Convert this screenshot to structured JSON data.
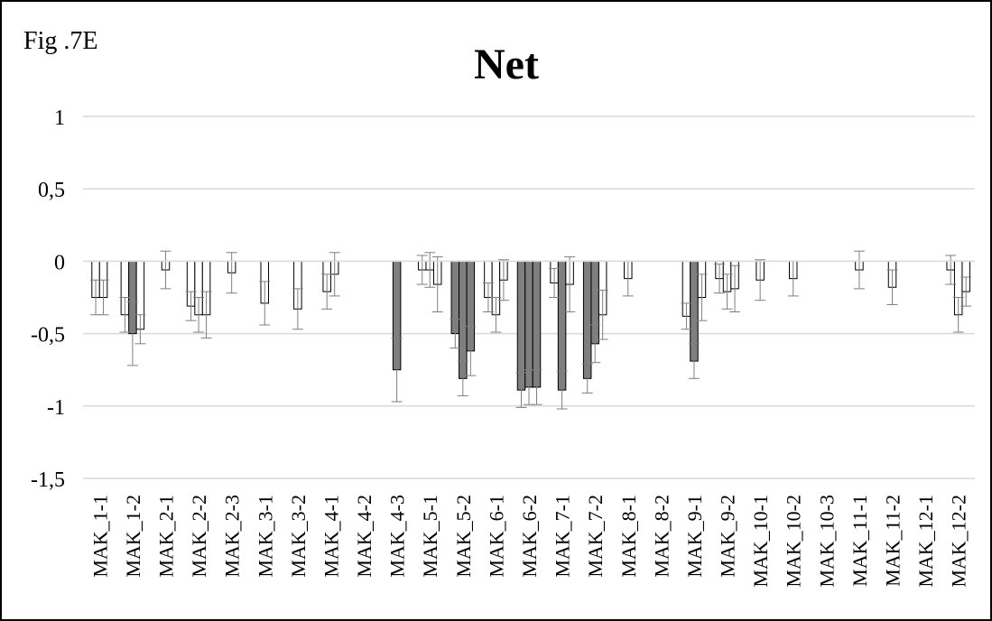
{
  "chart_data": {
    "type": "bar",
    "figure_label": "Fig .7E",
    "title": "Net",
    "xlabel": "",
    "ylabel": "",
    "ylim": [
      -1.5,
      1
    ],
    "yticks": [
      1,
      0.5,
      0,
      -0.5,
      -1,
      -1.5
    ],
    "ytick_labels": [
      "1",
      "0,5",
      "0",
      "-0,5",
      "-1",
      "-1,5"
    ],
    "grid": true,
    "legend": "none",
    "colors": {
      "light": "#ffffff",
      "dark": "#7f7f7f",
      "edge": "#000000",
      "grid": "#d9d9d9",
      "error": "#7f7f7f"
    },
    "categories": [
      "MAK_1-1",
      "MAK_1-2",
      "MAK_2-1",
      "MAK_2-2",
      "MAK_2-3",
      "MAK_3-1",
      "MAK_3-2",
      "MAK_4-1",
      "MAK_4-2",
      "MAK_4-3",
      "MAK_5-1",
      "MAK_5-2",
      "MAK_6-1",
      "MAK_6-2",
      "MAK_7-1",
      "MAK_7-2",
      "MAK_8-1",
      "MAK_8-2",
      "MAK_9-1",
      "MAK_9-2",
      "MAK_10-1",
      "MAK_10-2",
      "MAK_10-3",
      "MAK_11-1",
      "MAK_11-2",
      "MAK_12-1",
      "MAK_12-2"
    ],
    "groups": [
      {
        "category": "MAK_1-1",
        "bars": [
          {
            "value": -0.25,
            "error": 0.12,
            "fill": "light"
          },
          {
            "value": -0.25,
            "error": 0.12,
            "fill": "light"
          }
        ]
      },
      {
        "category": "MAK_1-2",
        "bars": [
          {
            "value": -0.37,
            "error": 0.12,
            "fill": "light"
          },
          {
            "value": -0.5,
            "error": 0.22,
            "fill": "dark"
          },
          {
            "value": -0.47,
            "error": 0.1,
            "fill": "light"
          }
        ]
      },
      {
        "category": "MAK_2-1",
        "bars": [
          {
            "value": -0.06,
            "error": 0.13,
            "fill": "light"
          }
        ]
      },
      {
        "category": "MAK_2-2",
        "bars": [
          {
            "value": -0.31,
            "error": 0.1,
            "fill": "light"
          },
          {
            "value": -0.37,
            "error": 0.12,
            "fill": "light"
          },
          {
            "value": -0.37,
            "error": 0.16,
            "fill": "light"
          }
        ]
      },
      {
        "category": "MAK_2-3",
        "bars": [
          {
            "value": -0.08,
            "error": 0.14,
            "fill": "light"
          }
        ]
      },
      {
        "category": "MAK_3-1",
        "bars": [
          {
            "value": -0.29,
            "error": 0.15,
            "fill": "light"
          }
        ]
      },
      {
        "category": "MAK_3-2",
        "bars": [
          {
            "value": -0.33,
            "error": 0.14,
            "fill": "light"
          }
        ]
      },
      {
        "category": "MAK_4-1",
        "bars": [
          {
            "value": -0.21,
            "error": 0.12,
            "fill": "light"
          },
          {
            "value": -0.09,
            "error": 0.15,
            "fill": "light"
          }
        ]
      },
      {
        "category": "MAK_4-2",
        "bars": []
      },
      {
        "category": "MAK_4-3",
        "bars": [
          {
            "value": -0.75,
            "error": 0.22,
            "fill": "dark"
          }
        ]
      },
      {
        "category": "MAK_5-1",
        "bars": [
          {
            "value": -0.06,
            "error": 0.1,
            "fill": "light"
          },
          {
            "value": -0.06,
            "error": 0.12,
            "fill": "light"
          },
          {
            "value": -0.16,
            "error": 0.19,
            "fill": "light"
          }
        ]
      },
      {
        "category": "MAK_5-2",
        "bars": [
          {
            "value": -0.5,
            "error": 0.1,
            "fill": "dark"
          },
          {
            "value": -0.81,
            "error": 0.12,
            "fill": "dark"
          },
          {
            "value": -0.62,
            "error": 0.17,
            "fill": "dark"
          }
        ]
      },
      {
        "category": "MAK_6-1",
        "bars": [
          {
            "value": -0.25,
            "error": 0.1,
            "fill": "light"
          },
          {
            "value": -0.37,
            "error": 0.12,
            "fill": "light"
          },
          {
            "value": -0.13,
            "error": 0.14,
            "fill": "light"
          }
        ]
      },
      {
        "category": "MAK_6-2",
        "bars": [
          {
            "value": -0.89,
            "error": 0.12,
            "fill": "dark"
          },
          {
            "value": -0.87,
            "error": 0.12,
            "fill": "dark"
          },
          {
            "value": -0.87,
            "error": 0.12,
            "fill": "dark"
          }
        ]
      },
      {
        "category": "MAK_7-1",
        "bars": [
          {
            "value": -0.15,
            "error": 0.1,
            "fill": "light"
          },
          {
            "value": -0.89,
            "error": 0.13,
            "fill": "dark"
          },
          {
            "value": -0.16,
            "error": 0.19,
            "fill": "light"
          }
        ]
      },
      {
        "category": "MAK_7-2",
        "bars": [
          {
            "value": -0.81,
            "error": 0.1,
            "fill": "dark"
          },
          {
            "value": -0.57,
            "error": 0.13,
            "fill": "dark"
          },
          {
            "value": -0.37,
            "error": 0.17,
            "fill": "light"
          }
        ]
      },
      {
        "category": "MAK_8-1",
        "bars": [
          {
            "value": -0.12,
            "error": 0.12,
            "fill": "light"
          }
        ]
      },
      {
        "category": "MAK_8-2",
        "bars": []
      },
      {
        "category": "MAK_9-1",
        "bars": [
          {
            "value": -0.38,
            "error": 0.09,
            "fill": "light"
          },
          {
            "value": -0.69,
            "error": 0.12,
            "fill": "dark"
          },
          {
            "value": -0.25,
            "error": 0.16,
            "fill": "light"
          }
        ]
      },
      {
        "category": "MAK_9-2",
        "bars": [
          {
            "value": -0.12,
            "error": 0.1,
            "fill": "light"
          },
          {
            "value": -0.21,
            "error": 0.12,
            "fill": "light"
          },
          {
            "value": -0.19,
            "error": 0.16,
            "fill": "light"
          }
        ]
      },
      {
        "category": "MAK_10-1",
        "bars": [
          {
            "value": -0.13,
            "error": 0.14,
            "fill": "light"
          }
        ]
      },
      {
        "category": "MAK_10-2",
        "bars": [
          {
            "value": -0.12,
            "error": 0.12,
            "fill": "light"
          }
        ]
      },
      {
        "category": "MAK_10-3",
        "bars": []
      },
      {
        "category": "MAK_11-1",
        "bars": [
          {
            "value": -0.06,
            "error": 0.13,
            "fill": "light"
          }
        ]
      },
      {
        "category": "MAK_11-2",
        "bars": [
          {
            "value": -0.18,
            "error": 0.12,
            "fill": "light"
          }
        ]
      },
      {
        "category": "MAK_12-1",
        "bars": []
      },
      {
        "category": "MAK_12-2",
        "bars": [
          {
            "value": -0.06,
            "error": 0.1,
            "fill": "light"
          },
          {
            "value": -0.37,
            "error": 0.12,
            "fill": "light"
          },
          {
            "value": -0.21,
            "error": 0.1,
            "fill": "light"
          }
        ]
      }
    ]
  }
}
